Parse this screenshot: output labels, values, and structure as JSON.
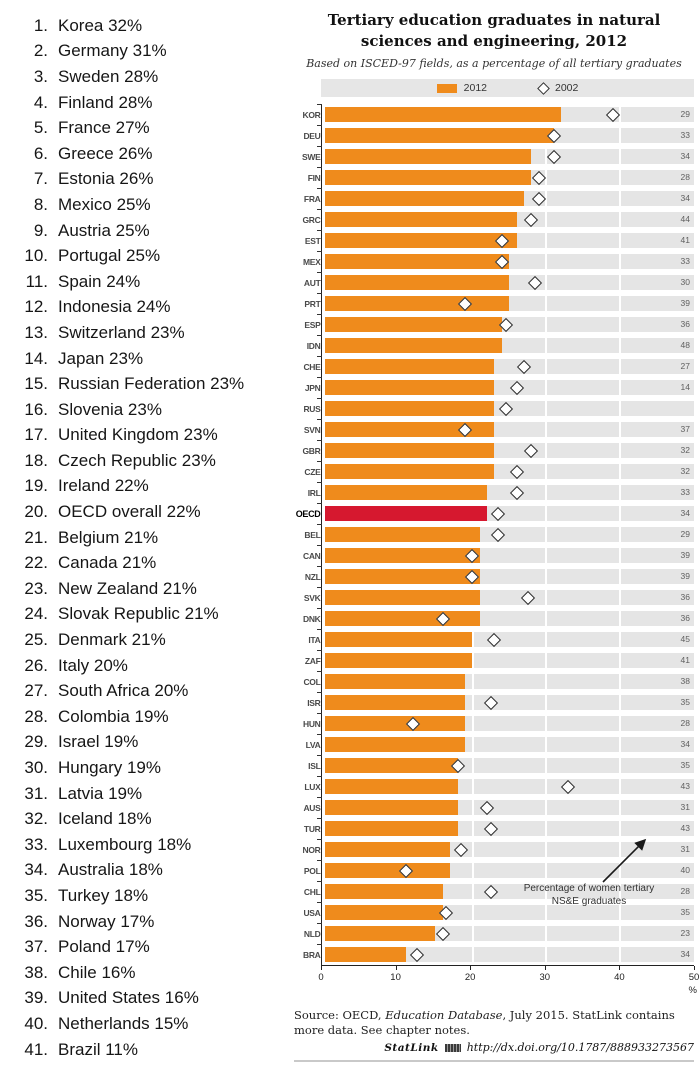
{
  "left_list": {
    "items": [
      {
        "rank": "1.",
        "label": "Korea 32%"
      },
      {
        "rank": "2.",
        "label": "Germany 31%"
      },
      {
        "rank": "3.",
        "label": "Sweden 28%"
      },
      {
        "rank": "4.",
        "label": "Finland 28%"
      },
      {
        "rank": "5.",
        "label": "France 27%"
      },
      {
        "rank": "6.",
        "label": "Greece 26%"
      },
      {
        "rank": "7.",
        "label": "Estonia 26%"
      },
      {
        "rank": "8.",
        "label": "Mexico 25%"
      },
      {
        "rank": "9.",
        "label": "Austria 25%"
      },
      {
        "rank": "10.",
        "label": "Portugal 25%"
      },
      {
        "rank": "11.",
        "label": "Spain 24%"
      },
      {
        "rank": "12.",
        "label": "Indonesia 24%"
      },
      {
        "rank": "13.",
        "label": "Switzerland 23%"
      },
      {
        "rank": "14.",
        "label": "Japan 23%"
      },
      {
        "rank": "15.",
        "label": "Russian Federation 23%"
      },
      {
        "rank": "16.",
        "label": "Slovenia 23%"
      },
      {
        "rank": "17.",
        "label": "United Kingdom 23%"
      },
      {
        "rank": "18.",
        "label": "Czech Republic 23%"
      },
      {
        "rank": "19.",
        "label": "Ireland 22%"
      },
      {
        "rank": "20.",
        "label": "OECD overall 22%"
      },
      {
        "rank": "21.",
        "label": "Belgium 21%"
      },
      {
        "rank": "22.",
        "label": "Canada 21%"
      },
      {
        "rank": "23.",
        "label": "New Zealand 21%"
      },
      {
        "rank": "24.",
        "label": "Slovak Republic 21%"
      },
      {
        "rank": "25.",
        "label": "Denmark 21%"
      },
      {
        "rank": "26.",
        "label": "Italy 20%"
      },
      {
        "rank": "27.",
        "label": "South Africa 20%"
      },
      {
        "rank": "28.",
        "label": "Colombia 19%"
      },
      {
        "rank": "29.",
        "label": "Israel 19%"
      },
      {
        "rank": "30.",
        "label": "Hungary 19%"
      },
      {
        "rank": "31.",
        "label": "Latvia 19%"
      },
      {
        "rank": "32.",
        "label": "Iceland 18%"
      },
      {
        "rank": "33.",
        "label": "Luxembourg 18%"
      },
      {
        "rank": "34.",
        "label": "Australia 18%"
      },
      {
        "rank": "35.",
        "label": "Turkey 18%"
      },
      {
        "rank": "36.",
        "label": "Norway 17%"
      },
      {
        "rank": "37.",
        "label": "Poland 17%"
      },
      {
        "rank": "38.",
        "label": "Chile 16%"
      },
      {
        "rank": "39.",
        "label": "United States 16%"
      },
      {
        "rank": "40.",
        "label": "Netherlands 15%"
      },
      {
        "rank": "41.",
        "label": "Brazil 11%"
      }
    ]
  },
  "chart": {
    "title": "Tertiary education graduates in natural sciences and engineering, 2012",
    "subtitle": "Based on ISCED-97 fields, as a percentage of all tertiary graduates",
    "legend": {
      "bar_label": "2012",
      "diamond_label": "2002"
    },
    "annotation": "Percentage of women tertiary NS&E graduates",
    "unit_label": "%"
  },
  "chart_data": {
    "type": "bar",
    "orientation": "horizontal",
    "title": "Tertiary education graduates in natural sciences and engineering, 2012",
    "subtitle": "Based on ISCED-97 fields, as a percentage of all tertiary graduates",
    "xlabel": "%",
    "xlim": [
      0,
      50
    ],
    "xticks": [
      0,
      10,
      20,
      30,
      40,
      50
    ],
    "gridlines": [
      10,
      20,
      30,
      40
    ],
    "legend_position": "top",
    "highlight_category": "OECD",
    "categories": [
      "KOR",
      "DEU",
      "SWE",
      "FIN",
      "FRA",
      "GRC",
      "EST",
      "MEX",
      "AUT",
      "PRT",
      "ESP",
      "IDN",
      "CHE",
      "JPN",
      "RUS",
      "SVN",
      "GBR",
      "CZE",
      "IRL",
      "OECD",
      "BEL",
      "CAN",
      "NZL",
      "SVK",
      "DNK",
      "ITA",
      "ZAF",
      "COL",
      "ISR",
      "HUN",
      "LVA",
      "ISL",
      "LUX",
      "AUS",
      "TUR",
      "NOR",
      "POL",
      "CHL",
      "USA",
      "NLD",
      "BRA"
    ],
    "series": [
      {
        "name": "2012",
        "marker": "bar",
        "values": [
          32,
          31,
          28,
          28,
          27,
          26,
          26,
          25,
          25,
          25,
          24,
          24,
          23,
          23,
          23,
          23,
          23,
          23,
          22,
          22,
          21,
          21,
          21,
          21,
          21,
          20,
          20,
          19,
          19,
          19,
          19,
          18,
          18,
          18,
          18,
          17,
          17,
          16,
          16,
          15,
          11
        ]
      },
      {
        "name": "2002",
        "marker": "diamond",
        "values": [
          39,
          31,
          31,
          29,
          29,
          28,
          24,
          24,
          28.5,
          19,
          24.5,
          null,
          27,
          26,
          24.5,
          19,
          28,
          26,
          26,
          23.5,
          23.5,
          20,
          20,
          27.5,
          16,
          23,
          null,
          null,
          22.5,
          12,
          null,
          18,
          33,
          22,
          22.5,
          18.5,
          11,
          22.5,
          16.5,
          16,
          12.5
        ]
      }
    ],
    "women_pct_labels": [
      29,
      33,
      34,
      28,
      34,
      44,
      41,
      33,
      30,
      39,
      36,
      48,
      27,
      14,
      null,
      37,
      32,
      32,
      33,
      34,
      29,
      39,
      39,
      36,
      36,
      45,
      41,
      38,
      35,
      28,
      34,
      35,
      43,
      31,
      43,
      31,
      40,
      28,
      35,
      23,
      34
    ],
    "colors": {
      "bar_2012": "#ef8b1c",
      "bar_oecd": "#d6182f",
      "row_stripe": "#e5e5e5",
      "diamond_border": "#2b2b2b"
    }
  },
  "footer": {
    "source_prefix": "Source: OECD, ",
    "source_italic": "Education Database",
    "source_suffix": ", July 2015. StatLink contains more data. See chapter notes.",
    "statlink_label": "StatLink",
    "statlink_url": "http://dx.doi.org/10.1787/888933273567"
  }
}
